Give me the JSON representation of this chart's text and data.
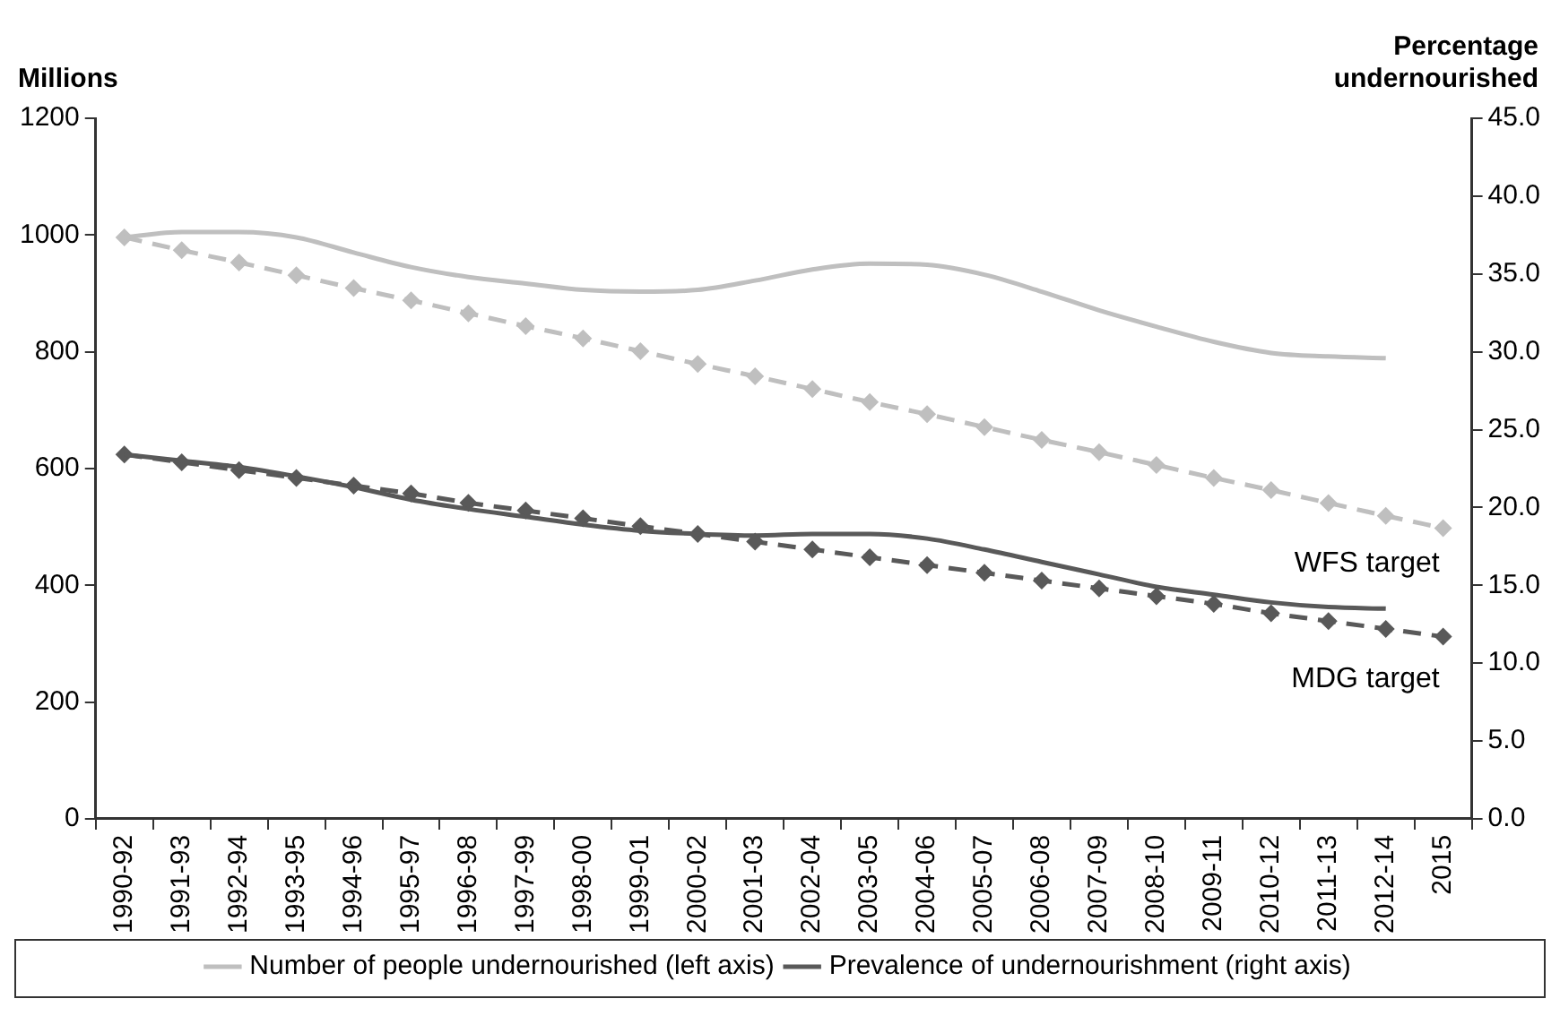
{
  "chart_data": {
    "type": "line",
    "ylabel": "Millions",
    "y2label": "Percentage undernourished",
    "categories": [
      "1990-92",
      "1991-93",
      "1992-94",
      "1993-95",
      "1994-96",
      "1995-97",
      "1996-98",
      "1997-99",
      "1998-00",
      "1999-01",
      "2000-02",
      "2001-03",
      "2002-04",
      "2003-05",
      "2004-06",
      "2005-07",
      "2006-08",
      "2007-09",
      "2008-10",
      "2009-11",
      "2010-12",
      "2011-13",
      "2012-14",
      "2015"
    ],
    "series": [
      {
        "name": "Number of people undernourished (left axis)",
        "color": "#bfbfbf",
        "line_style": "solid",
        "marker": "none",
        "values": [
          996,
          1005,
          1005,
          996,
          970,
          945,
          928,
          917,
          906,
          903,
          906,
          922,
          941,
          951,
          949,
          932,
          903,
          871,
          843,
          817,
          798,
          792,
          789,
          null
        ]
      },
      {
        "name": "Prevalence of undernourishment (right axis)",
        "color": "#595959",
        "axis": "y2",
        "line_style": "solid",
        "marker": "none",
        "values": [
          23.4,
          23.0,
          22.6,
          22.0,
          21.3,
          20.5,
          19.9,
          19.4,
          18.9,
          18.5,
          18.3,
          18.2,
          18.3,
          18.3,
          18.0,
          17.3,
          16.5,
          15.7,
          14.9,
          14.4,
          13.9,
          13.6,
          13.5,
          null
        ]
      },
      {
        "color": "#bfbfbf",
        "line_style": "dashed",
        "marker": "diamond",
        "values": [
          996,
          974,
          953,
          931,
          909,
          888,
          866,
          844,
          823,
          801,
          779,
          758,
          736,
          714,
          693,
          671,
          649,
          628,
          606,
          584,
          563,
          541,
          519,
          498
        ]
      },
      {
        "color": "#595959",
        "axis": "y2",
        "line_style": "dashed",
        "marker": "diamond",
        "values": [
          23.4,
          22.9,
          22.4,
          21.9,
          21.4,
          20.9,
          20.3,
          19.8,
          19.3,
          18.8,
          18.3,
          17.8,
          17.3,
          16.8,
          16.3,
          15.8,
          15.3,
          14.8,
          14.3,
          13.8,
          13.2,
          12.7,
          12.2,
          11.7
        ]
      }
    ],
    "ylim": [
      0,
      1200
    ],
    "yticks": [
      0,
      200,
      400,
      600,
      800,
      1000,
      1200
    ],
    "y2lim": [
      0,
      45
    ],
    "y2ticks": [
      {
        "value": 0,
        "label": "0.0"
      },
      {
        "value": 5,
        "label": "5.0"
      },
      {
        "value": 10,
        "label": "10.0"
      },
      {
        "value": 15,
        "label": "15.0"
      },
      {
        "value": 20,
        "label": "20.0"
      },
      {
        "value": 25,
        "label": "25.0"
      },
      {
        "value": 30,
        "label": "30.0"
      },
      {
        "value": 35,
        "label": "35.0"
      },
      {
        "value": 40,
        "label": "40.0"
      },
      {
        "value": 45,
        "label": "45.0"
      }
    ],
    "annotations": [
      "WFS target",
      "MDG target"
    ],
    "grid": false,
    "legend": "bottom"
  }
}
